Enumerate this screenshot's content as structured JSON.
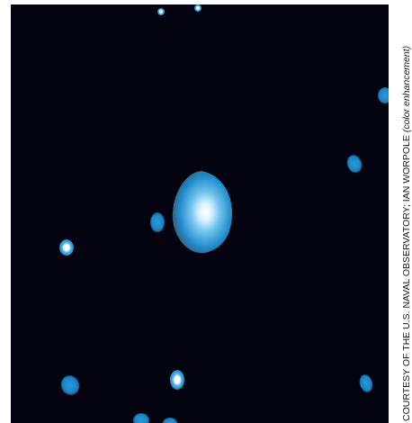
{
  "image": {
    "subject": "astronomical-star-field",
    "background_color": "#03030f",
    "star_color": "#1e8fd0",
    "star_core_color": "#ffffff"
  },
  "credit": {
    "main": "COURTESY OF THE U.S. NAVAL OBSERVATORY; IAN WORPOLE",
    "note": "(color enhancement)"
  }
}
